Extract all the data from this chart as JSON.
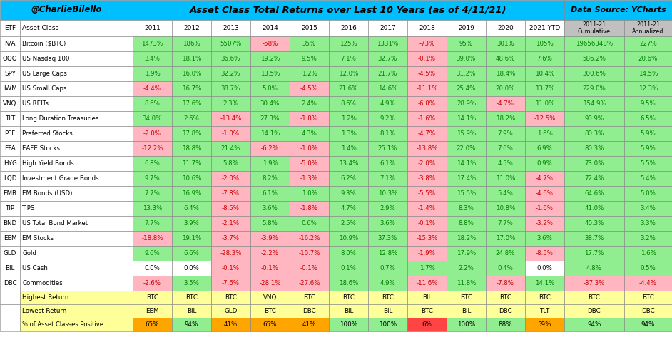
{
  "title": "Asset Class Total Returns over Last 10 Years (as of 4/11/21)",
  "left_label": "@CharlieBilello",
  "right_label": "Data Source: YCharts",
  "rows": [
    [
      "N/A",
      "Bitcoin ($BTC)",
      "1473%",
      "186%",
      "5507%",
      "-58%",
      "35%",
      "125%",
      "1331%",
      "-73%",
      "95%",
      "301%",
      "105%",
      "19656348%",
      "227%"
    ],
    [
      "QQQ",
      "US Nasdaq 100",
      "3.4%",
      "18.1%",
      "36.6%",
      "19.2%",
      "9.5%",
      "7.1%",
      "32.7%",
      "-0.1%",
      "39.0%",
      "48.6%",
      "7.6%",
      "586.2%",
      "20.6%"
    ],
    [
      "SPY",
      "US Large Caps",
      "1.9%",
      "16.0%",
      "32.2%",
      "13.5%",
      "1.2%",
      "12.0%",
      "21.7%",
      "-4.5%",
      "31.2%",
      "18.4%",
      "10.4%",
      "300.6%",
      "14.5%"
    ],
    [
      "IWM",
      "US Small Caps",
      "-4.4%",
      "16.7%",
      "38.7%",
      "5.0%",
      "-4.5%",
      "21.6%",
      "14.6%",
      "-11.1%",
      "25.4%",
      "20.0%",
      "13.7%",
      "229.0%",
      "12.3%"
    ],
    [
      "VNQ",
      "US REITs",
      "8.6%",
      "17.6%",
      "2.3%",
      "30.4%",
      "2.4%",
      "8.6%",
      "4.9%",
      "-6.0%",
      "28.9%",
      "-4.7%",
      "11.0%",
      "154.9%",
      "9.5%"
    ],
    [
      "TLT",
      "Long Duration Treasuries",
      "34.0%",
      "2.6%",
      "-13.4%",
      "27.3%",
      "-1.8%",
      "1.2%",
      "9.2%",
      "-1.6%",
      "14.1%",
      "18.2%",
      "-12.5%",
      "90.9%",
      "6.5%"
    ],
    [
      "PFF",
      "Preferred Stocks",
      "-2.0%",
      "17.8%",
      "-1.0%",
      "14.1%",
      "4.3%",
      "1.3%",
      "8.1%",
      "-4.7%",
      "15.9%",
      "7.9%",
      "1.6%",
      "80.3%",
      "5.9%"
    ],
    [
      "EFA",
      "EAFE Stocks",
      "-12.2%",
      "18.8%",
      "21.4%",
      "-6.2%",
      "-1.0%",
      "1.4%",
      "25.1%",
      "-13.8%",
      "22.0%",
      "7.6%",
      "6.9%",
      "80.3%",
      "5.9%"
    ],
    [
      "HYG",
      "High Yield Bonds",
      "6.8%",
      "11.7%",
      "5.8%",
      "1.9%",
      "-5.0%",
      "13.4%",
      "6.1%",
      "-2.0%",
      "14.1%",
      "4.5%",
      "0.9%",
      "73.0%",
      "5.5%"
    ],
    [
      "LQD",
      "Investment Grade Bonds",
      "9.7%",
      "10.6%",
      "-2.0%",
      "8.2%",
      "-1.3%",
      "6.2%",
      "7.1%",
      "-3.8%",
      "17.4%",
      "11.0%",
      "-4.7%",
      "72.4%",
      "5.4%"
    ],
    [
      "EMB",
      "EM Bonds (USD)",
      "7.7%",
      "16.9%",
      "-7.8%",
      "6.1%",
      "1.0%",
      "9.3%",
      "10.3%",
      "-5.5%",
      "15.5%",
      "5.4%",
      "-4.6%",
      "64.6%",
      "5.0%"
    ],
    [
      "TIP",
      "TIPS",
      "13.3%",
      "6.4%",
      "-8.5%",
      "3.6%",
      "-1.8%",
      "4.7%",
      "2.9%",
      "-1.4%",
      "8.3%",
      "10.8%",
      "-1.6%",
      "41.0%",
      "3.4%"
    ],
    [
      "BND",
      "US Total Bond Market",
      "7.7%",
      "3.9%",
      "-2.1%",
      "5.8%",
      "0.6%",
      "2.5%",
      "3.6%",
      "-0.1%",
      "8.8%",
      "7.7%",
      "-3.2%",
      "40.3%",
      "3.3%"
    ],
    [
      "EEM",
      "EM Stocks",
      "-18.8%",
      "19.1%",
      "-3.7%",
      "-3.9%",
      "-16.2%",
      "10.9%",
      "37.3%",
      "-15.3%",
      "18.2%",
      "17.0%",
      "3.6%",
      "38.7%",
      "3.2%"
    ],
    [
      "GLD",
      "Gold",
      "9.6%",
      "6.6%",
      "-28.3%",
      "-2.2%",
      "-10.7%",
      "8.0%",
      "12.8%",
      "-1.9%",
      "17.9%",
      "24.8%",
      "-8.5%",
      "17.7%",
      "1.6%"
    ],
    [
      "BIL",
      "US Cash",
      "0.0%",
      "0.0%",
      "-0.1%",
      "-0.1%",
      "-0.1%",
      "0.1%",
      "0.7%",
      "1.7%",
      "2.2%",
      "0.4%",
      "0.0%",
      "4.8%",
      "0.5%"
    ],
    [
      "DBC",
      "Commodities",
      "-2.6%",
      "3.5%",
      "-7.6%",
      "-28.1%",
      "-27.6%",
      "18.6%",
      "4.9%",
      "-11.6%",
      "11.8%",
      "-7.8%",
      "14.1%",
      "-37.3%",
      "-4.4%"
    ]
  ],
  "footer_rows": [
    [
      "",
      "Highest Return",
      "BTC",
      "BTC",
      "BTC",
      "VNQ",
      "BTC",
      "BTC",
      "BTC",
      "BIL",
      "BTC",
      "BTC",
      "BTC",
      "BTC",
      "BTC"
    ],
    [
      "",
      "Lowest Return",
      "EEM",
      "BIL",
      "GLD",
      "BTC",
      "DBC",
      "BIL",
      "BIL",
      "BTC",
      "BIL",
      "DBC",
      "TLT",
      "DBC",
      "DBC"
    ],
    [
      "",
      "% of Asset Classes Positive",
      "65%",
      "94%",
      "41%",
      "65%",
      "41%",
      "100%",
      "100%",
      "6%",
      "100%",
      "88%",
      "59%",
      "94%",
      "94%"
    ]
  ],
  "pct_positive_colors": [
    "#FFA500",
    "#90EE90",
    "#FFA500",
    "#FFA500",
    "#FFA500",
    "#90EE90",
    "#90EE90",
    "#FF4444",
    "#90EE90",
    "#90EE90",
    "#FFA500",
    "#90EE90",
    "#90EE90"
  ]
}
